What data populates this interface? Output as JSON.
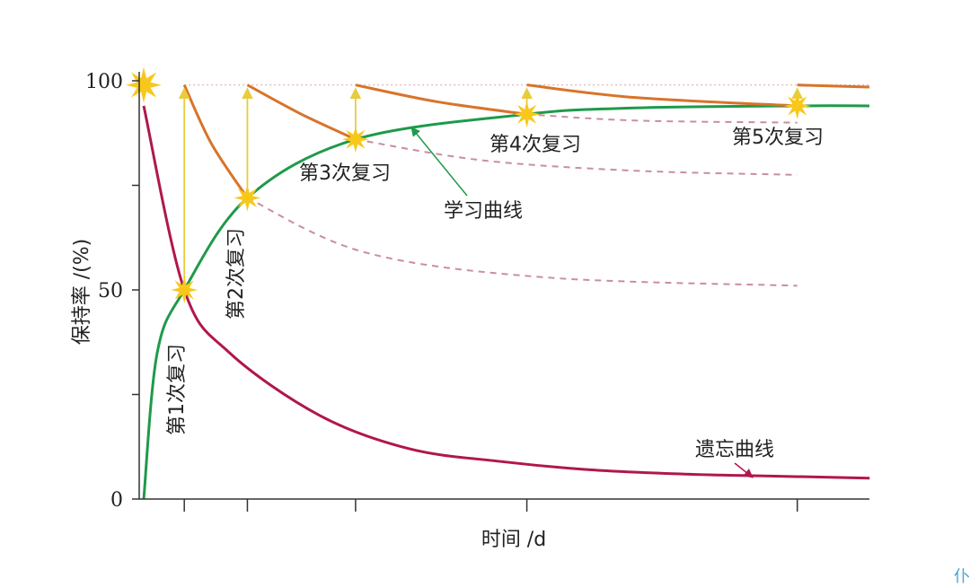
{
  "chart_data": {
    "type": "line",
    "title": "",
    "xlabel": "时间 /d",
    "ylabel": "保持率 /(%)",
    "ylim": [
      0,
      100
    ],
    "y_ticks": [
      "0",
      "50",
      "100"
    ],
    "x_ticks": [
      0.5,
      1.2,
      2.4,
      4.3,
      7.3
    ],
    "grid": false,
    "colors": {
      "forgetting": "#b0174e",
      "learning": "#1e9a4a",
      "review": "#d8742a",
      "dashed": "#c98f9a",
      "review_arrow": "#e8cc3c",
      "star": "#f7c81b",
      "reference": "#e3b3b3"
    },
    "series": [
      {
        "name": "遗忘曲线",
        "x": [
          0.05,
          0.5,
          1.0,
          2.0,
          3.0,
          4.0,
          5.0,
          6.0,
          7.0,
          8.1
        ],
        "values": [
          94,
          50,
          35,
          20,
          12,
          9,
          7,
          6,
          5.5,
          5
        ]
      },
      {
        "name": "学习曲线",
        "x": [
          0.05,
          0.2,
          0.5,
          1.2,
          2.4,
          4.3,
          5.5,
          7.3,
          8.1
        ],
        "values": [
          0,
          35,
          50,
          72,
          86,
          92,
          93.5,
          94,
          94
        ]
      }
    ],
    "review_segments": [
      {
        "x": [
          0.5,
          0.8,
          1.2
        ],
        "values": [
          99,
          85,
          72
        ]
      },
      {
        "x": [
          1.2,
          1.8,
          2.4
        ],
        "values": [
          99,
          92,
          86
        ]
      },
      {
        "x": [
          2.4,
          3.3,
          4.3
        ],
        "values": [
          99,
          95,
          92
        ]
      },
      {
        "x": [
          4.3,
          5.5,
          7.3
        ],
        "values": [
          99,
          96,
          94
        ]
      },
      {
        "x": [
          7.3,
          8.1
        ],
        "values": [
          99,
          98.5
        ]
      }
    ],
    "reviews": [
      {
        "label": "第1次复习",
        "x": 0.5,
        "from": 50,
        "to": 99
      },
      {
        "label": "第2次复习",
        "x": 1.2,
        "from": 72,
        "to": 99
      },
      {
        "label": "第3次复习",
        "x": 2.4,
        "from": 86,
        "to": 99
      },
      {
        "label": "第4次复习",
        "x": 4.3,
        "from": 92,
        "to": 99
      },
      {
        "label": "第5次复习",
        "x": 7.3,
        "from": 94,
        "to": 99
      }
    ],
    "annotations": {
      "learning_curve": "学习曲线",
      "forgetting_curve": "遗忘曲线"
    }
  },
  "corner_glyph": "仆"
}
